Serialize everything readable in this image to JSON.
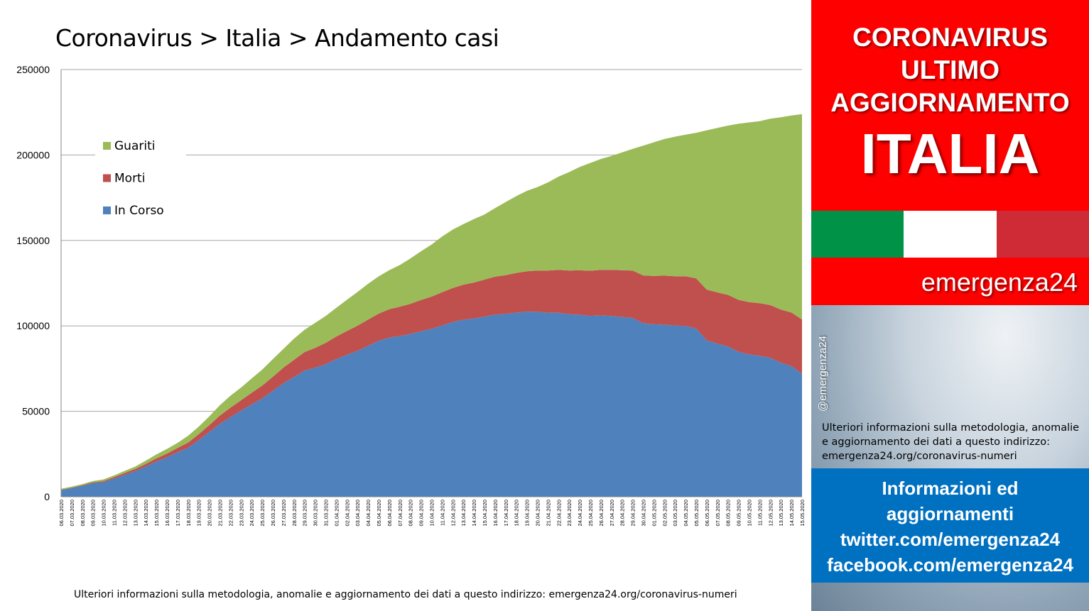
{
  "chart_data": {
    "type": "area",
    "title": "Coronavirus > Italia > Andamento casi",
    "stacked": true,
    "ylim": [
      0,
      250000
    ],
    "y_ticks": [
      0,
      50000,
      100000,
      150000,
      200000,
      250000
    ],
    "grid": true,
    "legend_position": "top-left",
    "x": [
      "06.03.2020",
      "07.03.2020",
      "08.03.2020",
      "09.03.2020",
      "10.03.2020",
      "11.03.2020",
      "12.03.2020",
      "13.03.2020",
      "14.03.2020",
      "15.03.2020",
      "16.03.2020",
      "17.03.2020",
      "18.03.2020",
      "19.03.2020",
      "20.03.2020",
      "21.03.2020",
      "22.03.2020",
      "23.03.2020",
      "24.03.2020",
      "25.03.2020",
      "26.03.2020",
      "27.03.2020",
      "28.03.2020",
      "29.03.2020",
      "30.03.2020",
      "31.03.2020",
      "01.04.2020",
      "02.04.2020",
      "03.04.2020",
      "04.04.2020",
      "05.04.2020",
      "06.04.2020",
      "07.04.2020",
      "08.04.2020",
      "09.04.2020",
      "10.04.2020",
      "11.04.2020",
      "12.04.2020",
      "13.04.2020",
      "14.04.2020",
      "15.04.2020",
      "16.04.2020",
      "17.04.2020",
      "18.04.2020",
      "19.04.2020",
      "20.04.2020",
      "21.04.2020",
      "22.04.2020",
      "23.04.2020",
      "24.04.2020",
      "25.04.2020",
      "26.04.2020",
      "27.04.2020",
      "28.04.2020",
      "29.04.2020",
      "30.04.2020",
      "01.05.2020",
      "02.05.2020",
      "03.05.2020",
      "04.05.2020",
      "05.05.2020",
      "06.05.2020",
      "07.05.2020",
      "08.05.2020",
      "09.05.2020",
      "10.05.2020",
      "11.05.2020",
      "12.05.2020",
      "13.05.2020",
      "14.05.2020",
      "15.05.2020"
    ],
    "series": [
      {
        "name": "In Corso",
        "color": "#4f81bd",
        "values": [
          3916,
          5061,
          6387,
          7985,
          8514,
          10590,
          12839,
          14955,
          17750,
          20603,
          23073,
          26062,
          28710,
          33190,
          37860,
          42681,
          46638,
          50418,
          54030,
          57521,
          62013,
          66414,
          70065,
          73880,
          75528,
          77635,
          80572,
          83049,
          85388,
          88274,
          91246,
          93187,
          94067,
          95262,
          96877,
          98273,
          100269,
          102253,
          103616,
          104291,
          105418,
          106607,
          106962,
          107771,
          108257,
          108237,
          107709,
          107699,
          106848,
          106527,
          105847,
          106103,
          105813,
          105205,
          104657,
          101551,
          100943,
          100704,
          100179,
          99980,
          98467,
          91528,
          89624,
          87961,
          84842,
          83324,
          82488,
          81266,
          78457,
          76440,
          72070
        ]
      },
      {
        "name": "Morti",
        "color": "#c0504d",
        "values": [
          197,
          233,
          366,
          463,
          631,
          827,
          1016,
          1266,
          1441,
          1809,
          2158,
          2503,
          2978,
          3405,
          4032,
          4825,
          5476,
          6077,
          6820,
          7503,
          8165,
          9134,
          10023,
          10779,
          11591,
          12428,
          13155,
          13915,
          14681,
          15362,
          15887,
          16523,
          17127,
          17669,
          18279,
          18849,
          19468,
          19899,
          20465,
          21067,
          21645,
          22170,
          22745,
          23227,
          23660,
          24114,
          24648,
          25085,
          25549,
          25969,
          26384,
          26644,
          26977,
          27359,
          27682,
          27967,
          28236,
          28710,
          28884,
          29079,
          29315,
          29684,
          29958,
          30201,
          30395,
          30560,
          30739,
          30911,
          31106,
          31368,
          31610
        ]
      },
      {
        "name": "Guariti",
        "color": "#9bbb59",
        "values": [
          523,
          589,
          622,
          724,
          1004,
          1045,
          1258,
          1439,
          1966,
          2335,
          2749,
          2941,
          4025,
          4440,
          5129,
          6072,
          7024,
          7432,
          8326,
          9362,
          10361,
          10950,
          12384,
          13030,
          14620,
          15729,
          16847,
          18278,
          19758,
          20996,
          21815,
          22837,
          24392,
          26491,
          28470,
          30455,
          32534,
          34211,
          35435,
          37130,
          38092,
          40164,
          42727,
          44927,
          47055,
          48877,
          51600,
          54543,
          57576,
          60498,
          63120,
          64928,
          66624,
          68941,
          71252,
          75945,
          78249,
          79914,
          81654,
          82879,
          85231,
          93245,
          96276,
          99023,
          103031,
          105186,
          106587,
          109039,
          112541,
          115288,
          120205
        ]
      }
    ]
  },
  "footnote": "Ulteriori informazioni sulla metodologia, anomalie e aggiornamento dei dati a questo indirizzo: emergenza24.org/coronavirus-numeri",
  "sidebar": {
    "headline_lines": [
      "CORONAVIRUS",
      "ULTIMO",
      "AGGIORNAMENTO"
    ],
    "country": "ITALIA",
    "flag_colors": [
      "#009246",
      "#ffffff",
      "#ce2b37"
    ],
    "brand": "emergenza24",
    "handle": "@emergenza24",
    "note": "Ulteriori informazioni sulla metodologia, anomalie e aggiornamento dei dati a questo indirizzo: emergenza24.org/coronavirus-numeri",
    "info_lines": [
      "Informazioni ed",
      "aggiornamenti",
      "twitter.com/emergenza24",
      "facebook.com/emergenza24"
    ]
  },
  "colors": {
    "headline_bg": "#ff0000",
    "info_bg": "#0070c0"
  }
}
